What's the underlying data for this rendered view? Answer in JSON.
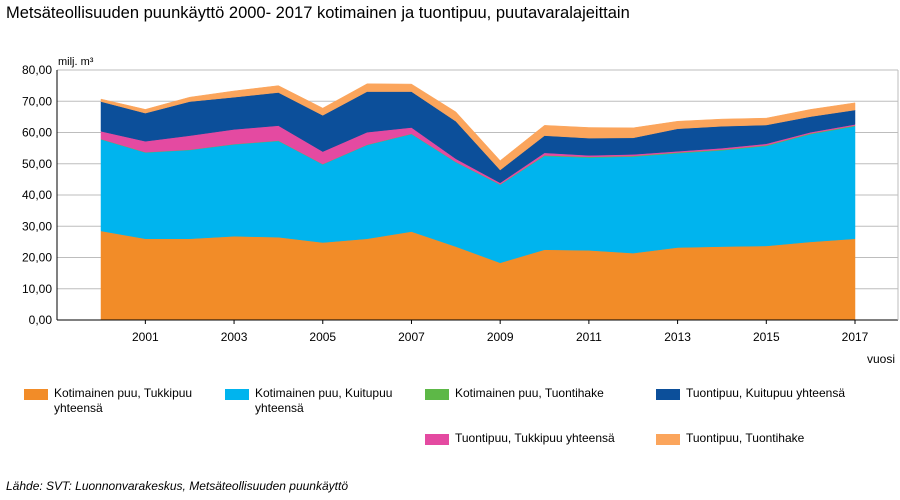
{
  "title": "Metsäteollisuuden puunkäyttö 2000- 2017 kotimainen ja tuontipuu, puutavaralajeittain",
  "source": "Lähde: SVT: Luonnonvarakeskus, Metsäteollisuuden puunkäyttö",
  "chart_data": {
    "type": "area",
    "stacked": true,
    "ylabel": "milj. m³",
    "xlabel": "vuosi",
    "ylim": [
      0,
      80
    ],
    "yticks": [
      "0,00",
      "10,00",
      "20,00",
      "30,00",
      "40,00",
      "50,00",
      "60,00",
      "70,00",
      "80,00"
    ],
    "xtick_labels": [
      "2001",
      "2003",
      "2005",
      "2007",
      "2009",
      "2011",
      "2013",
      "2015",
      "2017"
    ],
    "grid": "horizontal",
    "legend_position": "bottom",
    "x": [
      2000,
      2001,
      2002,
      2003,
      2004,
      2005,
      2006,
      2007,
      2008,
      2009,
      2010,
      2011,
      2012,
      2013,
      2014,
      2015,
      2016,
      2017
    ],
    "series": [
      {
        "name": "Kotimainen puu, Tukkipuu yhteensä",
        "color": "#f28c28",
        "values": [
          28.5,
          26.0,
          26.0,
          26.8,
          26.5,
          24.8,
          26.0,
          28.3,
          23.5,
          18.3,
          22.5,
          22.3,
          21.4,
          23.2,
          23.5,
          23.7,
          25.0,
          26.0
        ]
      },
      {
        "name": "Kotimainen puu, Kuitupuu yhteensä",
        "color": "#00b4ee",
        "values": [
          29.3,
          27.6,
          28.4,
          29.4,
          30.8,
          25.0,
          30.0,
          31.2,
          27.0,
          25.0,
          30.0,
          29.7,
          30.9,
          30.2,
          30.8,
          32.0,
          34.5,
          36.0
        ]
      },
      {
        "name": "Kotimainen puu, Tuontihake",
        "color": "#5db847",
        "values": [
          0.1,
          0.1,
          0.1,
          0.1,
          0.1,
          0.1,
          0.1,
          0.1,
          0.1,
          0.1,
          0.2,
          0.2,
          0.2,
          0.2,
          0.2,
          0.2,
          0.2,
          0.2
        ]
      },
      {
        "name": "Tuontipuu, Tukkipuu yhteensä",
        "color": "#e44aa1",
        "values": [
          2.5,
          3.5,
          4.5,
          4.7,
          4.8,
          4.0,
          4.0,
          2.0,
          1.0,
          0.5,
          0.8,
          0.5,
          0.5,
          0.4,
          0.5,
          0.5,
          0.4,
          0.4
        ]
      },
      {
        "name": "Tuontipuu, Kuitupuu yhteensä",
        "color": "#0c4f9a",
        "values": [
          9.5,
          9.0,
          10.9,
          10.3,
          10.6,
          11.6,
          13.0,
          11.5,
          12.0,
          4.1,
          5.5,
          5.5,
          5.3,
          7.2,
          7.0,
          6.0,
          5.0,
          4.6
        ]
      },
      {
        "name": "Tuontipuu, Tuontihake",
        "color": "#fba55c",
        "values": [
          0.8,
          1.2,
          1.4,
          2.0,
          2.2,
          2.3,
          2.5,
          2.4,
          3.0,
          3.0,
          3.3,
          3.4,
          3.2,
          2.4,
          2.3,
          2.2,
          2.3,
          2.3
        ]
      }
    ]
  }
}
